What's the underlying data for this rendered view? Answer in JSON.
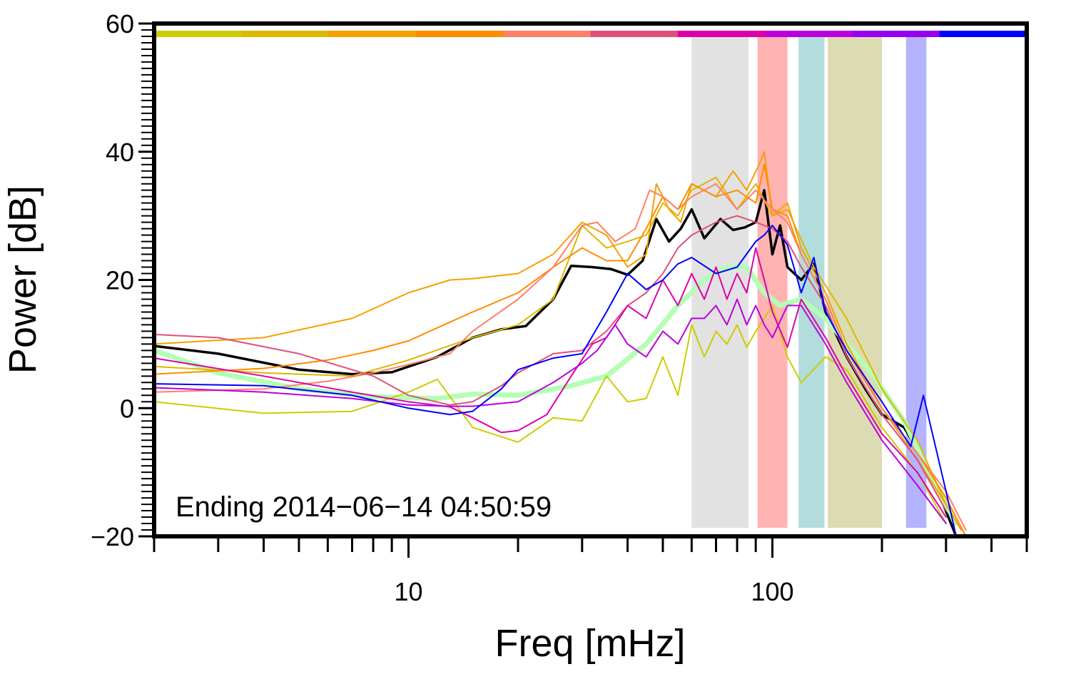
{
  "chart_data": {
    "type": "line",
    "xscale": "log",
    "xlabel": "Freq [mHz]",
    "ylabel": "Power [dB]",
    "xlim": [
      2,
      500
    ],
    "ylim": [
      -20,
      60
    ],
    "x_ticks": [
      {
        "value": 10,
        "label": "10"
      },
      {
        "value": 100,
        "label": "100"
      }
    ],
    "y_ticks": [
      {
        "value": -20,
        "label": "−20"
      },
      {
        "value": 0,
        "label": "0"
      },
      {
        "value": 20,
        "label": "20"
      },
      {
        "value": 40,
        "label": "40"
      },
      {
        "value": 60,
        "label": "60"
      }
    ],
    "annotation": "Ending 2014−06−14 04:50:59",
    "shaded_bands": [
      {
        "name": "band-gray",
        "from": 60,
        "to": 86,
        "color": "#e2e2e2"
      },
      {
        "name": "band-red",
        "from": 91,
        "to": 110,
        "color": "#ffb3b3"
      },
      {
        "name": "band-teal",
        "from": 118,
        "to": 139,
        "color": "#b3dcdc"
      },
      {
        "name": "band-olive",
        "from": 142,
        "to": 200,
        "color": "#dcdcb3"
      },
      {
        "name": "band-blue",
        "from": 233,
        "to": 265,
        "color": "#b3b3ff"
      }
    ],
    "color_bar": [
      "#cccc00",
      "#ddb700",
      "#f5a000",
      "#ff8c00",
      "#ff7f66",
      "#e0507a",
      "#dd00aa",
      "#bb00dd",
      "#9900ee",
      "#0000ff"
    ],
    "series": [
      {
        "name": "mean",
        "color": "#000000",
        "width": 3.5,
        "x": [
          2,
          3,
          5,
          7,
          9,
          12,
          15,
          18,
          21,
          25,
          28,
          32,
          36,
          40,
          44,
          48,
          52,
          56,
          60,
          65,
          72,
          78,
          84,
          90,
          95,
          100,
          105,
          110,
          120,
          130,
          140,
          160,
          180,
          200,
          230,
          260,
          290,
          320
        ],
        "y": [
          9.7,
          8.5,
          6.0,
          5.3,
          5.6,
          8,
          11,
          12.3,
          12.8,
          17,
          22.2,
          22,
          21.7,
          20.8,
          23,
          29.5,
          26,
          28,
          31,
          26.5,
          29.5,
          27.8,
          28.2,
          29,
          34,
          24,
          28.5,
          22,
          20,
          22.5,
          15,
          8,
          3,
          -1,
          -3,
          -8,
          -14,
          -20
        ]
      },
      {
        "name": "background-avg",
        "color": "#b3ffb3",
        "width": 7,
        "x": [
          2,
          3,
          5,
          8,
          12,
          15,
          20,
          28,
          35,
          45,
          55,
          65,
          75,
          85,
          95,
          105,
          120,
          140,
          160,
          190,
          230,
          280,
          320
        ],
        "y": [
          9,
          5.5,
          3,
          1.8,
          1.5,
          2.2,
          2.0,
          3.5,
          5,
          10,
          16,
          20,
          22,
          22,
          18,
          16,
          17,
          14,
          10,
          5,
          -2,
          -12,
          -18
        ]
      },
      {
        "name": "trace-olive",
        "color": "#cccc00",
        "width": 2,
        "x": [
          2,
          4,
          7,
          10,
          12,
          15,
          20,
          25,
          30,
          35,
          40,
          45,
          50,
          55,
          60,
          65,
          70,
          75,
          80,
          85,
          90,
          100,
          110,
          120,
          140,
          160,
          200,
          250,
          300
        ],
        "y": [
          1,
          -0.8,
          -0.5,
          2.5,
          4.5,
          -3,
          -5.3,
          -1.5,
          -2,
          5,
          1,
          1.5,
          8,
          2,
          13,
          8,
          12,
          10,
          13,
          9.5,
          12,
          16,
          8,
          4,
          8,
          6,
          -3,
          -10,
          -18
        ]
      },
      {
        "name": "trace-gold",
        "color": "#ddb700",
        "width": 2,
        "x": [
          2,
          4,
          7,
          10,
          15,
          20,
          25,
          30,
          35,
          40,
          45,
          50,
          55,
          60,
          70,
          80,
          90,
          100,
          110,
          130,
          160,
          200,
          250,
          300
        ],
        "y": [
          6.5,
          5.5,
          5,
          7.5,
          11,
          13,
          17,
          28.5,
          25,
          26,
          27,
          32,
          30,
          34,
          36,
          31,
          35,
          30,
          31,
          22,
          14,
          3,
          -5,
          -15
        ]
      },
      {
        "name": "trace-orange1",
        "color": "#f5a000",
        "width": 2,
        "x": [
          2,
          4,
          7,
          10,
          13,
          15,
          20,
          25,
          30,
          35,
          40,
          45,
          48,
          52,
          56,
          60,
          70,
          78,
          85,
          92,
          95,
          100,
          110,
          120,
          140,
          160,
          200,
          250,
          300,
          330
        ],
        "y": [
          10,
          11,
          14,
          18,
          20,
          20.2,
          21,
          24,
          29,
          27,
          22,
          24,
          35,
          31,
          29,
          35,
          33,
          37,
          34,
          38,
          40,
          30,
          32,
          25,
          18,
          10,
          0,
          -8,
          -15,
          -19
        ]
      },
      {
        "name": "trace-orange2",
        "color": "#ff8c00",
        "width": 2,
        "x": [
          2,
          4,
          6,
          8,
          10,
          15,
          20,
          25,
          30,
          35,
          40,
          45,
          50,
          55,
          60,
          70,
          80,
          90,
          95,
          100,
          110,
          120,
          140,
          160,
          200,
          250,
          300,
          340
        ],
        "y": [
          5.3,
          6.2,
          7.5,
          9,
          10.5,
          15,
          18,
          22,
          25,
          23,
          23,
          28,
          33,
          31,
          35,
          33,
          34,
          32,
          38,
          31,
          30,
          24,
          17,
          9,
          0,
          -7,
          -14,
          -20
        ]
      },
      {
        "name": "trace-salmon",
        "color": "#ff7f66",
        "width": 2,
        "x": [
          2,
          4,
          6,
          8,
          10,
          13,
          15,
          20,
          25,
          30,
          33,
          37,
          42,
          46,
          50,
          55,
          60,
          70,
          80,
          90,
          100,
          110,
          120,
          140,
          160,
          200,
          250,
          300,
          340
        ],
        "y": [
          2.5,
          3,
          4.2,
          5.5,
          6.8,
          8.5,
          12,
          17,
          22,
          28.5,
          29,
          26,
          28,
          34,
          33,
          31,
          33,
          35,
          31,
          34,
          31,
          29,
          24,
          17,
          9,
          0,
          -7,
          -13,
          -19
        ]
      },
      {
        "name": "trace-rose",
        "color": "#e0507a",
        "width": 2,
        "x": [
          2,
          3,
          5,
          8,
          10,
          13,
          15,
          18,
          20,
          25,
          30,
          35,
          40,
          45,
          50,
          55,
          60,
          70,
          80,
          90,
          100,
          110,
          120,
          140,
          160,
          200,
          250,
          300
        ],
        "y": [
          11.5,
          11,
          8.5,
          5,
          2,
          0.5,
          1,
          3.5,
          5.5,
          8.5,
          9,
          12,
          16,
          18,
          21,
          25,
          27,
          29,
          30,
          29,
          28,
          26,
          22,
          16,
          8,
          -1,
          -8,
          -16
        ]
      },
      {
        "name": "trace-magenta",
        "color": "#dd00aa",
        "width": 2,
        "x": [
          2,
          4,
          7,
          10,
          13,
          15,
          18,
          20,
          24,
          28,
          32,
          35,
          40,
          45,
          50,
          55,
          60,
          65,
          70,
          75,
          80,
          85,
          90,
          95,
          100,
          110,
          120,
          140,
          160,
          200,
          250,
          300
        ],
        "y": [
          7.8,
          5,
          2.5,
          1,
          0.2,
          -1.5,
          -3.8,
          -3.5,
          -1,
          5,
          10,
          11,
          16,
          14,
          20,
          16,
          21,
          17,
          22,
          17,
          21,
          18,
          25,
          20,
          15,
          9.5,
          17,
          11,
          5,
          -4,
          -10,
          -17
        ]
      },
      {
        "name": "trace-purple",
        "color": "#bb00dd",
        "width": 2,
        "x": [
          2,
          4,
          7,
          10,
          13,
          15,
          20,
          25,
          30,
          33,
          37,
          40,
          45,
          50,
          55,
          60,
          65,
          70,
          75,
          80,
          85,
          90,
          95,
          100,
          110,
          120,
          140,
          160,
          200,
          250,
          300
        ],
        "y": [
          3.2,
          2.5,
          1.5,
          0.5,
          0.3,
          0.3,
          1,
          4,
          7,
          9,
          13,
          10,
          8,
          12,
          10,
          14,
          14,
          16,
          13,
          17,
          13,
          16,
          13,
          11,
          16,
          16,
          10,
          4,
          -5,
          -12,
          -18
        ]
      },
      {
        "name": "trace-blue",
        "color": "#0000ff",
        "width": 2,
        "x": [
          2,
          4,
          7,
          10,
          13,
          15,
          18,
          20,
          25,
          30,
          35,
          40,
          45,
          50,
          55,
          60,
          70,
          80,
          90,
          95,
          100,
          110,
          120,
          130,
          140,
          160,
          200,
          240,
          260,
          300,
          320
        ],
        "y": [
          3.8,
          3.5,
          2,
          0,
          -1,
          -0.5,
          3,
          6,
          7.8,
          8.5,
          15,
          21,
          18.5,
          20,
          22.5,
          23.5,
          21,
          22,
          26,
          27,
          28.5,
          25.5,
          18,
          23.5,
          15,
          9,
          1,
          -6,
          2,
          -13,
          -20
        ]
      }
    ]
  }
}
